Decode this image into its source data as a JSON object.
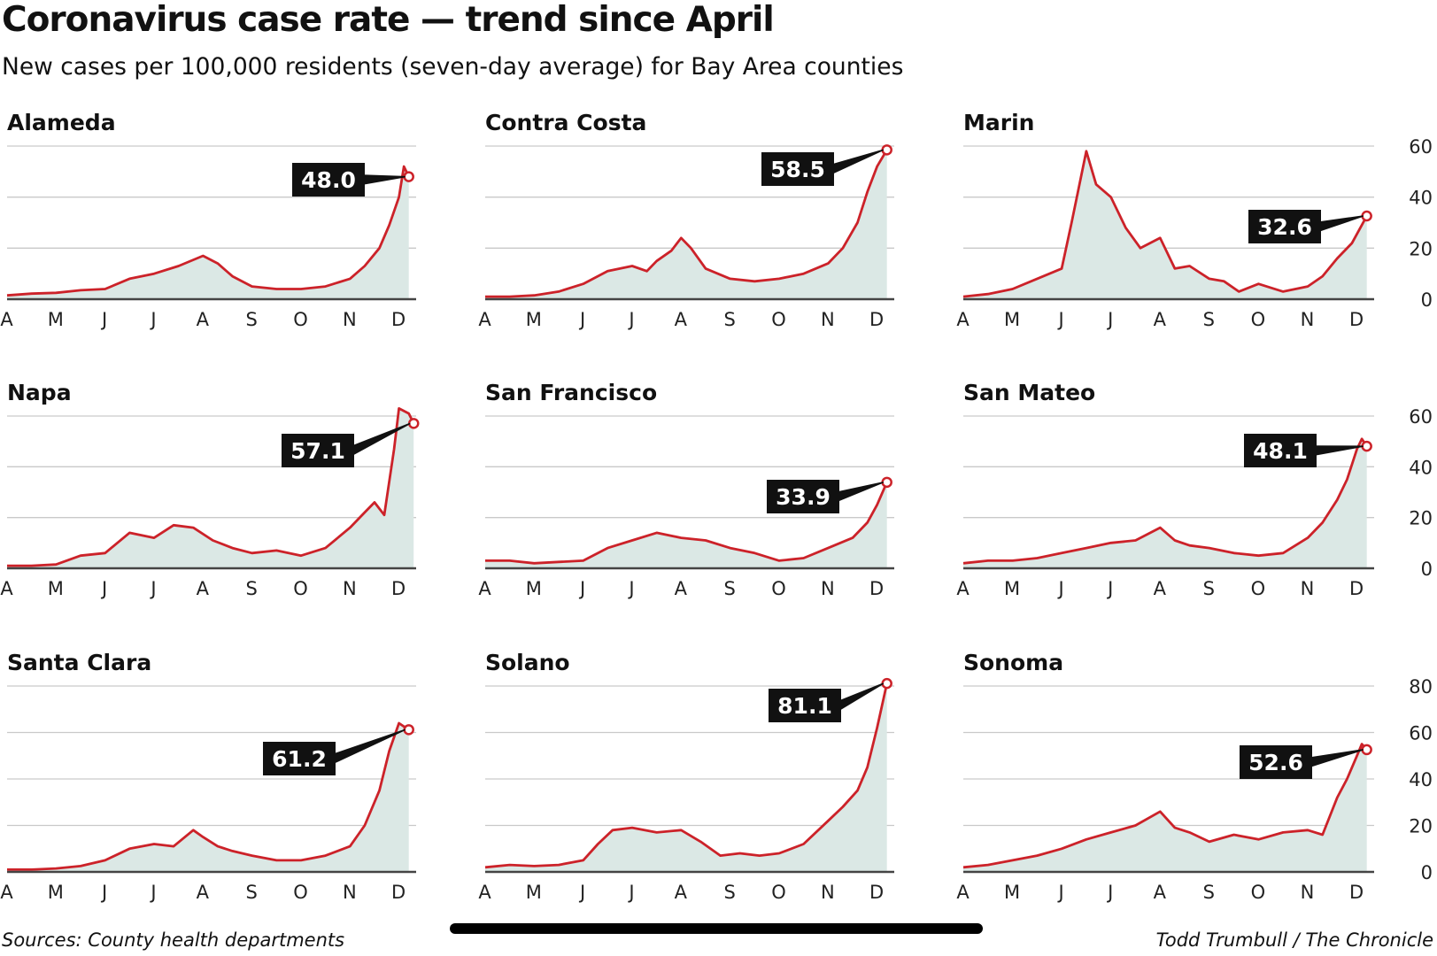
{
  "header": {
    "title": "Coronavirus case rate — trend since April",
    "subtitle": "New cases per 100,000 residents (seven-day average) for Bay Area counties"
  },
  "footer": {
    "source": "Sources: County health departments",
    "credit": "Todd Trumbull / The Chronicle"
  },
  "colors": {
    "line": "#cc2229",
    "fill": "#dbe8e5",
    "grid": "#c9c9c9",
    "label_bg": "#111111"
  },
  "chart_data": [
    {
      "type": "area",
      "name": "Alameda",
      "months": [
        "A",
        "M",
        "J",
        "J",
        "A",
        "S",
        "O",
        "N",
        "D"
      ],
      "ylim": [
        0,
        60
      ],
      "yticks": [
        0,
        20,
        40,
        60
      ],
      "yticks_shown": false,
      "last_value": "48.0",
      "points": [
        [
          0,
          1.5
        ],
        [
          0.5,
          2.2
        ],
        [
          1,
          2.5
        ],
        [
          1.5,
          3.5
        ],
        [
          2,
          4
        ],
        [
          2.5,
          8
        ],
        [
          3,
          10
        ],
        [
          3.5,
          13
        ],
        [
          4,
          17
        ],
        [
          4.3,
          14
        ],
        [
          4.6,
          9
        ],
        [
          5,
          5
        ],
        [
          5.5,
          4
        ],
        [
          6,
          4
        ],
        [
          6.5,
          5
        ],
        [
          7,
          8
        ],
        [
          7.3,
          13
        ],
        [
          7.6,
          20
        ],
        [
          7.8,
          29
        ],
        [
          8,
          40
        ],
        [
          8.1,
          52
        ],
        [
          8.2,
          48
        ]
      ]
    },
    {
      "type": "area",
      "name": "Contra Costa",
      "months": [
        "A",
        "M",
        "J",
        "J",
        "A",
        "S",
        "O",
        "N",
        "D"
      ],
      "ylim": [
        0,
        60
      ],
      "yticks": [
        0,
        20,
        40,
        60
      ],
      "yticks_shown": false,
      "last_value": "58.5",
      "points": [
        [
          0,
          1
        ],
        [
          0.5,
          1
        ],
        [
          1,
          1.5
        ],
        [
          1.5,
          3
        ],
        [
          2,
          6
        ],
        [
          2.5,
          11
        ],
        [
          3,
          13
        ],
        [
          3.3,
          11
        ],
        [
          3.5,
          15
        ],
        [
          3.8,
          19
        ],
        [
          4,
          24
        ],
        [
          4.2,
          20
        ],
        [
          4.5,
          12
        ],
        [
          5,
          8
        ],
        [
          5.5,
          7
        ],
        [
          6,
          8
        ],
        [
          6.5,
          10
        ],
        [
          7,
          14
        ],
        [
          7.3,
          20
        ],
        [
          7.6,
          30
        ],
        [
          7.8,
          42
        ],
        [
          8,
          52
        ],
        [
          8.2,
          58.5
        ]
      ]
    },
    {
      "type": "area",
      "name": "Marin",
      "months": [
        "A",
        "M",
        "J",
        "J",
        "A",
        "S",
        "O",
        "N",
        "D"
      ],
      "ylim": [
        0,
        60
      ],
      "yticks": [
        0,
        20,
        40,
        60
      ],
      "yticks_shown": true,
      "last_value": "32.6",
      "points": [
        [
          0,
          1
        ],
        [
          0.5,
          2
        ],
        [
          1,
          4
        ],
        [
          1.5,
          8
        ],
        [
          2,
          12
        ],
        [
          2.2,
          30
        ],
        [
          2.5,
          58
        ],
        [
          2.7,
          45
        ],
        [
          3,
          40
        ],
        [
          3.3,
          28
        ],
        [
          3.6,
          20
        ],
        [
          4,
          24
        ],
        [
          4.3,
          12
        ],
        [
          4.6,
          13
        ],
        [
          5,
          8
        ],
        [
          5.3,
          7
        ],
        [
          5.6,
          3
        ],
        [
          6,
          6
        ],
        [
          6.5,
          3
        ],
        [
          7,
          5
        ],
        [
          7.3,
          9
        ],
        [
          7.6,
          16
        ],
        [
          7.9,
          22
        ],
        [
          8.2,
          32.6
        ]
      ]
    },
    {
      "type": "area",
      "name": "Napa",
      "months": [
        "A",
        "M",
        "J",
        "J",
        "A",
        "S",
        "O",
        "N",
        "D"
      ],
      "ylim": [
        0,
        60
      ],
      "yticks": [
        0,
        20,
        40,
        60
      ],
      "yticks_shown": false,
      "last_value": "57.1",
      "points": [
        [
          0,
          1
        ],
        [
          0.5,
          1
        ],
        [
          1,
          1.5
        ],
        [
          1.5,
          5
        ],
        [
          2,
          6
        ],
        [
          2.5,
          14
        ],
        [
          3,
          12
        ],
        [
          3.4,
          17
        ],
        [
          3.8,
          16
        ],
        [
          4.2,
          11
        ],
        [
          4.6,
          8
        ],
        [
          5,
          6
        ],
        [
          5.5,
          7
        ],
        [
          6,
          5
        ],
        [
          6.5,
          8
        ],
        [
          7,
          16
        ],
        [
          7.3,
          22
        ],
        [
          7.5,
          26
        ],
        [
          7.7,
          21
        ],
        [
          7.9,
          47
        ],
        [
          8,
          63
        ],
        [
          8.2,
          61
        ],
        [
          8.3,
          57.1
        ]
      ]
    },
    {
      "type": "area",
      "name": "San Francisco",
      "months": [
        "A",
        "M",
        "J",
        "J",
        "A",
        "S",
        "O",
        "N",
        "D"
      ],
      "ylim": [
        0,
        60
      ],
      "yticks": [
        0,
        20,
        40,
        60
      ],
      "yticks_shown": false,
      "last_value": "33.9",
      "points": [
        [
          0,
          3
        ],
        [
          0.5,
          3
        ],
        [
          1,
          2
        ],
        [
          1.5,
          2.5
        ],
        [
          2,
          3
        ],
        [
          2.5,
          8
        ],
        [
          3,
          11
        ],
        [
          3.5,
          14
        ],
        [
          4,
          12
        ],
        [
          4.5,
          11
        ],
        [
          5,
          8
        ],
        [
          5.5,
          6
        ],
        [
          6,
          3
        ],
        [
          6.5,
          4
        ],
        [
          7,
          8
        ],
        [
          7.5,
          12
        ],
        [
          7.8,
          18
        ],
        [
          8,
          25
        ],
        [
          8.2,
          33.9
        ]
      ]
    },
    {
      "type": "area",
      "name": "San Mateo",
      "months": [
        "A",
        "M",
        "J",
        "J",
        "A",
        "S",
        "O",
        "N",
        "D"
      ],
      "ylim": [
        0,
        60
      ],
      "yticks": [
        0,
        20,
        40,
        60
      ],
      "yticks_shown": true,
      "last_value": "48.1",
      "points": [
        [
          0,
          2
        ],
        [
          0.5,
          3
        ],
        [
          1,
          3
        ],
        [
          1.5,
          4
        ],
        [
          2,
          6
        ],
        [
          2.5,
          8
        ],
        [
          3,
          10
        ],
        [
          3.5,
          11
        ],
        [
          4,
          16
        ],
        [
          4.3,
          11
        ],
        [
          4.6,
          9
        ],
        [
          5,
          8
        ],
        [
          5.5,
          6
        ],
        [
          6,
          5
        ],
        [
          6.5,
          6
        ],
        [
          7,
          12
        ],
        [
          7.3,
          18
        ],
        [
          7.6,
          27
        ],
        [
          7.8,
          35
        ],
        [
          8,
          47
        ],
        [
          8.1,
          51
        ],
        [
          8.2,
          48.1
        ]
      ]
    },
    {
      "type": "area",
      "name": "Santa Clara",
      "months": [
        "A",
        "M",
        "J",
        "J",
        "A",
        "S",
        "O",
        "N",
        "D"
      ],
      "ylim": [
        0,
        80
      ],
      "yticks": [
        0,
        20,
        40,
        60,
        80
      ],
      "yticks_shown": false,
      "last_value": "61.2",
      "points": [
        [
          0,
          1
        ],
        [
          0.5,
          1
        ],
        [
          1,
          1.5
        ],
        [
          1.5,
          2.5
        ],
        [
          2,
          5
        ],
        [
          2.5,
          10
        ],
        [
          3,
          12
        ],
        [
          3.4,
          11
        ],
        [
          3.8,
          18
        ],
        [
          4,
          15
        ],
        [
          4.3,
          11
        ],
        [
          4.6,
          9
        ],
        [
          5,
          7
        ],
        [
          5.5,
          5
        ],
        [
          6,
          5
        ],
        [
          6.5,
          7
        ],
        [
          7,
          11
        ],
        [
          7.3,
          20
        ],
        [
          7.6,
          35
        ],
        [
          7.8,
          52
        ],
        [
          8,
          64
        ],
        [
          8.2,
          61.2
        ]
      ]
    },
    {
      "type": "area",
      "name": "Solano",
      "months": [
        "A",
        "M",
        "J",
        "J",
        "A",
        "S",
        "O",
        "N",
        "D"
      ],
      "ylim": [
        0,
        80
      ],
      "yticks": [
        0,
        20,
        40,
        60,
        80
      ],
      "yticks_shown": false,
      "last_value": "81.1",
      "points": [
        [
          0,
          2
        ],
        [
          0.5,
          3
        ],
        [
          1,
          2.5
        ],
        [
          1.5,
          3
        ],
        [
          2,
          5
        ],
        [
          2.3,
          12
        ],
        [
          2.6,
          18
        ],
        [
          3,
          19
        ],
        [
          3.5,
          17
        ],
        [
          4,
          18
        ],
        [
          4.4,
          13
        ],
        [
          4.8,
          7
        ],
        [
          5.2,
          8
        ],
        [
          5.6,
          7
        ],
        [
          6,
          8
        ],
        [
          6.5,
          12
        ],
        [
          7,
          22
        ],
        [
          7.3,
          28
        ],
        [
          7.6,
          35
        ],
        [
          7.8,
          45
        ],
        [
          8,
          62
        ],
        [
          8.2,
          81.1
        ]
      ]
    },
    {
      "type": "area",
      "name": "Sonoma",
      "months": [
        "A",
        "M",
        "J",
        "J",
        "A",
        "S",
        "O",
        "N",
        "D"
      ],
      "ylim": [
        0,
        80
      ],
      "yticks": [
        0,
        20,
        40,
        60,
        80
      ],
      "yticks_shown": true,
      "last_value": "52.6",
      "points": [
        [
          0,
          2
        ],
        [
          0.5,
          3
        ],
        [
          1,
          5
        ],
        [
          1.5,
          7
        ],
        [
          2,
          10
        ],
        [
          2.5,
          14
        ],
        [
          3,
          17
        ],
        [
          3.5,
          20
        ],
        [
          4,
          26
        ],
        [
          4.3,
          19
        ],
        [
          4.6,
          17
        ],
        [
          5,
          13
        ],
        [
          5.5,
          16
        ],
        [
          6,
          14
        ],
        [
          6.5,
          17
        ],
        [
          7,
          18
        ],
        [
          7.3,
          16
        ],
        [
          7.6,
          32
        ],
        [
          7.8,
          40
        ],
        [
          8,
          50
        ],
        [
          8.1,
          55
        ],
        [
          8.2,
          52.6
        ]
      ]
    }
  ]
}
